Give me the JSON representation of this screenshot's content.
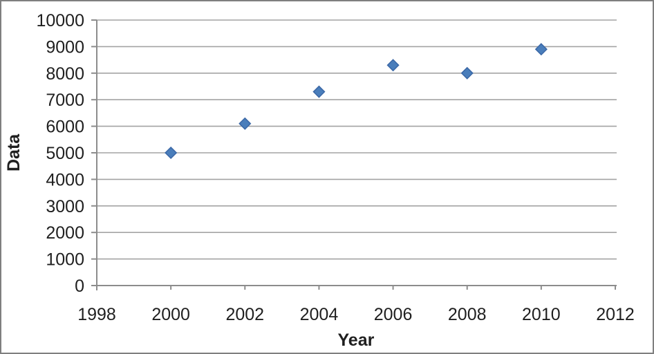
{
  "chart_data": {
    "type": "scatter",
    "title": "",
    "xlabel": "Year",
    "ylabel": "Data",
    "x": [
      2000,
      2002,
      2004,
      2006,
      2008,
      2010
    ],
    "y": [
      5000,
      6100,
      7300,
      8300,
      8000,
      8900
    ],
    "series_name": "",
    "xlim": [
      1998,
      2012
    ],
    "ylim": [
      0,
      10000
    ],
    "x_ticks": [
      1998,
      2000,
      2002,
      2004,
      2006,
      2008,
      2010,
      2012
    ],
    "y_ticks": [
      0,
      1000,
      2000,
      3000,
      4000,
      5000,
      6000,
      7000,
      8000,
      9000,
      10000
    ],
    "grid": "horizontal",
    "legend": "none",
    "marker": "diamond",
    "colors": {
      "marker_fill": "#4a7ebb",
      "marker_stroke": "#3a67a6",
      "gridline": "#a3a3a3",
      "axis": "#8c8c8c",
      "text": "#1f1f1f",
      "figure_border": "#7f7f7f",
      "background": "#ffffff"
    }
  }
}
